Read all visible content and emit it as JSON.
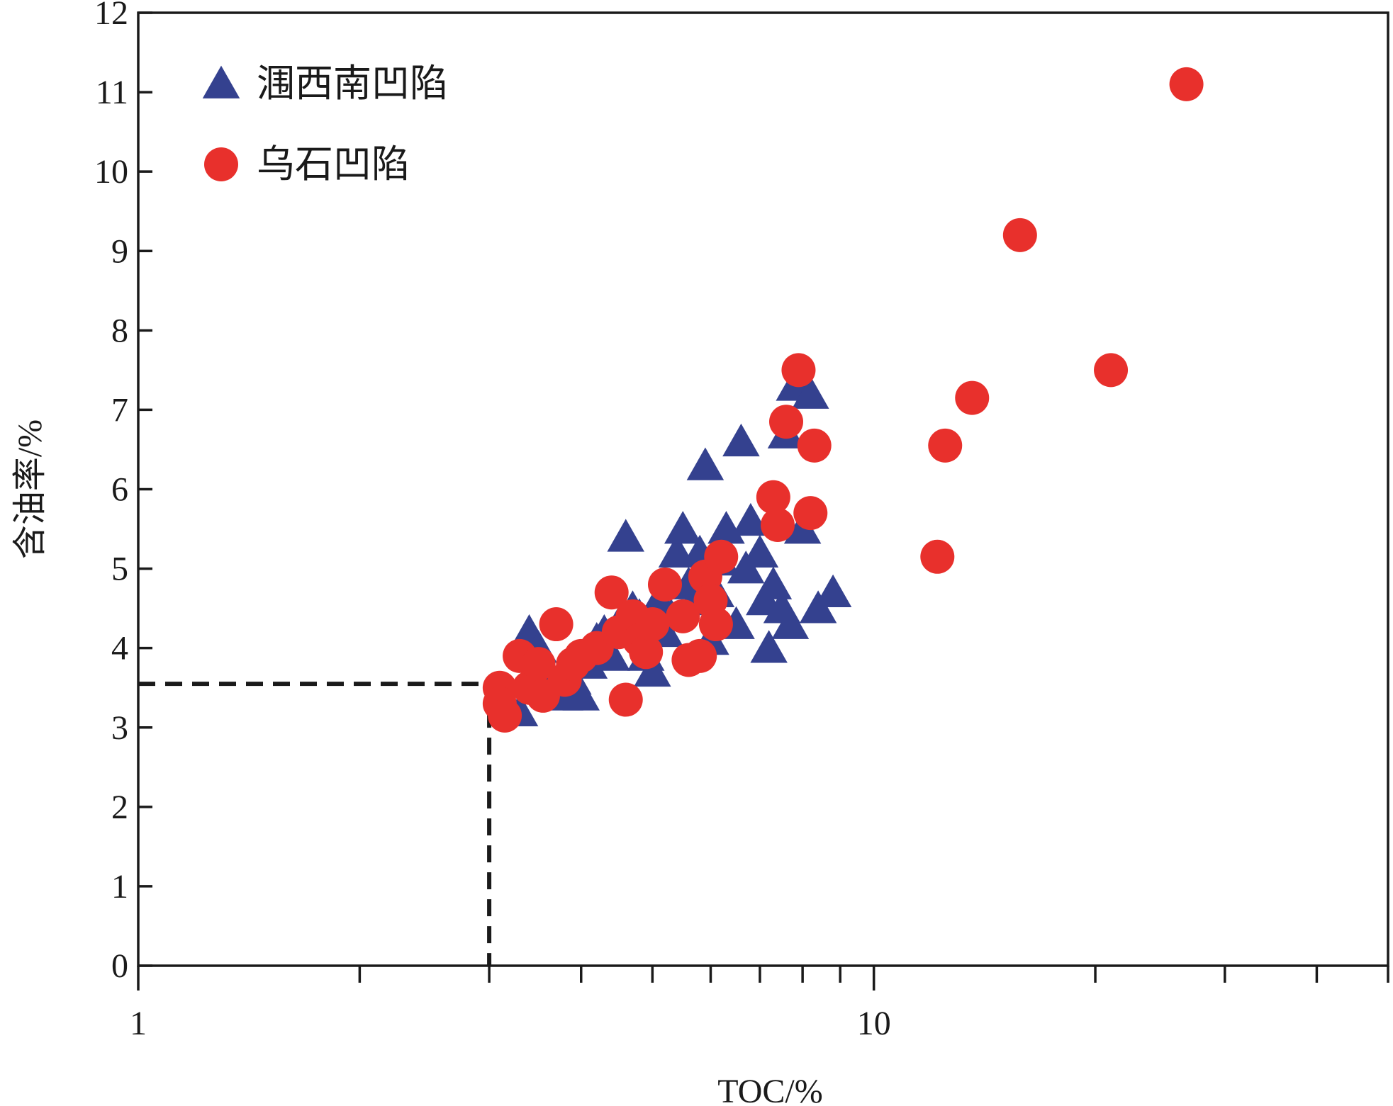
{
  "chart_data": {
    "type": "scatter",
    "title": "",
    "xlabel": "TOC/%",
    "ylabel": "含油率/%",
    "x_scale": "log",
    "xlim": [
      1,
      50
    ],
    "ylim": [
      0,
      12
    ],
    "x_ticks": [
      1,
      10
    ],
    "x_tick_labels": [
      "1",
      "10"
    ],
    "x_minor_ticks": [
      2,
      3,
      4,
      5,
      6,
      7,
      8,
      9,
      20,
      30,
      40,
      50
    ],
    "y_ticks": [
      0,
      1,
      2,
      3,
      4,
      5,
      6,
      7,
      8,
      9,
      10,
      11,
      12
    ],
    "y_tick_labels": [
      "0",
      "1",
      "2",
      "3",
      "4",
      "5",
      "6",
      "7",
      "8",
      "9",
      "10",
      "11",
      "12"
    ],
    "grid": false,
    "legend_position": "top-left",
    "reference_lines": {
      "threshold_x": 3.0,
      "threshold_y": 3.55,
      "style": "dashed",
      "color": "#1a1a1a"
    },
    "series": [
      {
        "name": "涠西南凹陷",
        "marker": "triangle",
        "color": "#34418f",
        "points": [
          [
            3.3,
            3.2
          ],
          [
            3.4,
            4.2
          ],
          [
            3.5,
            4.0
          ],
          [
            3.6,
            3.6
          ],
          [
            3.7,
            3.5
          ],
          [
            3.8,
            3.4
          ],
          [
            3.9,
            3.6
          ],
          [
            4.0,
            3.4
          ],
          [
            4.1,
            3.8
          ],
          [
            4.2,
            4.1
          ],
          [
            4.3,
            4.2
          ],
          [
            4.4,
            3.9
          ],
          [
            4.5,
            4.3
          ],
          [
            4.6,
            5.4
          ],
          [
            4.7,
            4.5
          ],
          [
            4.8,
            4.4
          ],
          [
            4.9,
            3.9
          ],
          [
            5.0,
            3.7
          ],
          [
            5.1,
            4.6
          ],
          [
            5.2,
            4.2
          ],
          [
            5.3,
            4.4
          ],
          [
            5.4,
            5.2
          ],
          [
            5.5,
            5.5
          ],
          [
            5.6,
            4.8
          ],
          [
            5.7,
            4.6
          ],
          [
            5.8,
            5.2
          ],
          [
            5.9,
            6.3
          ],
          [
            6.0,
            4.1
          ],
          [
            6.1,
            4.7
          ],
          [
            6.2,
            5.1
          ],
          [
            6.3,
            5.5
          ],
          [
            6.5,
            4.3
          ],
          [
            6.6,
            6.6
          ],
          [
            6.7,
            5.0
          ],
          [
            6.8,
            5.6
          ],
          [
            7.0,
            5.2
          ],
          [
            7.1,
            4.6
          ],
          [
            7.2,
            4.0
          ],
          [
            7.3,
            4.8
          ],
          [
            7.5,
            4.5
          ],
          [
            7.6,
            6.7
          ],
          [
            7.7,
            4.3
          ],
          [
            7.8,
            7.3
          ],
          [
            8.0,
            5.5
          ],
          [
            8.2,
            7.2
          ],
          [
            8.4,
            4.5
          ],
          [
            8.8,
            4.7
          ]
        ]
      },
      {
        "name": "乌石凹陷",
        "marker": "circle",
        "color": "#e8302c",
        "points": [
          [
            3.1,
            3.5
          ],
          [
            3.1,
            3.3
          ],
          [
            3.15,
            3.15
          ],
          [
            3.3,
            3.9
          ],
          [
            3.4,
            3.5
          ],
          [
            3.5,
            3.8
          ],
          [
            3.55,
            3.4
          ],
          [
            3.7,
            4.3
          ],
          [
            3.8,
            3.6
          ],
          [
            3.9,
            3.8
          ],
          [
            4.0,
            3.9
          ],
          [
            4.2,
            4.0
          ],
          [
            4.4,
            4.7
          ],
          [
            4.5,
            4.2
          ],
          [
            4.6,
            3.35
          ],
          [
            4.7,
            4.4
          ],
          [
            4.8,
            4.1
          ],
          [
            4.9,
            3.95
          ],
          [
            5.0,
            4.3
          ],
          [
            5.2,
            4.8
          ],
          [
            5.5,
            4.4
          ],
          [
            5.6,
            3.85
          ],
          [
            5.8,
            3.9
          ],
          [
            5.9,
            4.9
          ],
          [
            6.0,
            4.6
          ],
          [
            6.1,
            4.3
          ],
          [
            6.2,
            5.15
          ],
          [
            7.3,
            5.9
          ],
          [
            7.4,
            5.55
          ],
          [
            7.6,
            6.85
          ],
          [
            7.9,
            7.5
          ],
          [
            8.2,
            5.7
          ],
          [
            8.3,
            6.55
          ],
          [
            12.2,
            5.15
          ],
          [
            12.5,
            6.55
          ],
          [
            13.6,
            7.15
          ],
          [
            15.8,
            9.2
          ],
          [
            21.0,
            7.5
          ],
          [
            26.6,
            11.1
          ]
        ]
      }
    ]
  }
}
